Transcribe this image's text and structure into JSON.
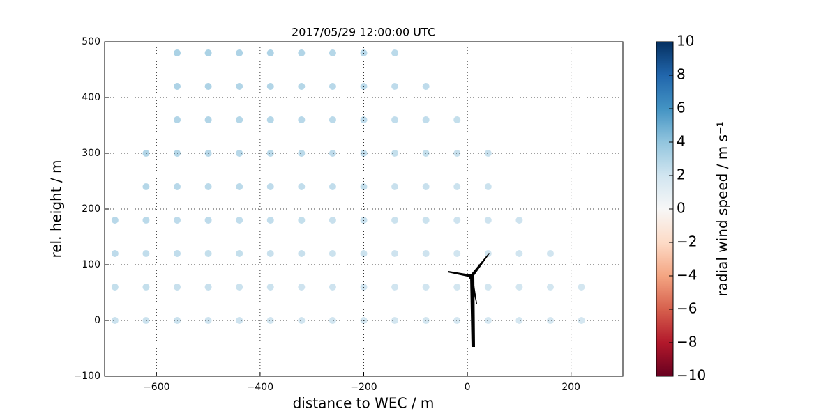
{
  "chart_data": {
    "type": "scatter",
    "title": "2017/05/29 12:00:00 UTC",
    "x_label": "distance to WEC / m",
    "y_label": "rel. height / m",
    "colorbar_label": "radial wind speed / m s⁻¹",
    "xlim": [
      -700,
      300
    ],
    "ylim": [
      -100,
      500
    ],
    "xticks": [
      {
        "value": -600,
        "label": "−600"
      },
      {
        "value": -400,
        "label": "−400"
      },
      {
        "value": -200,
        "label": "−200"
      },
      0,
      200
    ],
    "yticks": [
      {
        "value": -100,
        "label": "−100"
      },
      0,
      100,
      200,
      300,
      400,
      500
    ],
    "grid": true,
    "clim": [
      -10,
      10
    ],
    "cticks": [
      {
        "value": -10,
        "label": "−10"
      },
      {
        "value": -8,
        "label": "−8"
      },
      {
        "value": -6,
        "label": "−6"
      },
      {
        "value": -4,
        "label": "−4"
      },
      {
        "value": -2,
        "label": "−2"
      },
      0,
      2,
      4,
      6,
      8,
      10
    ],
    "colormap": [
      "#67001f",
      "#b2182b",
      "#d6604d",
      "#f4a582",
      "#fddbc7",
      "#f7f7f7",
      "#d1e5f0",
      "#92c5de",
      "#4393c3",
      "#2166ac",
      "#053061"
    ],
    "x": [
      -680,
      -680,
      -680,
      -680,
      -620,
      -620,
      -620,
      -620,
      -620,
      -620,
      -560,
      -560,
      -560,
      -560,
      -560,
      -560,
      -560,
      -560,
      -560,
      -500,
      -500,
      -500,
      -500,
      -500,
      -500,
      -500,
      -500,
      -500,
      -440,
      -440,
      -440,
      -440,
      -440,
      -440,
      -440,
      -440,
      -440,
      -380,
      -380,
      -380,
      -380,
      -380,
      -380,
      -380,
      -380,
      -380,
      -320,
      -320,
      -320,
      -320,
      -320,
      -320,
      -320,
      -320,
      -320,
      -260,
      -260,
      -260,
      -260,
      -260,
      -260,
      -260,
      -260,
      -260,
      -200,
      -200,
      -200,
      -200,
      -200,
      -200,
      -200,
      -200,
      -200,
      -140,
      -140,
      -140,
      -140,
      -140,
      -140,
      -140,
      -140,
      -140,
      -80,
      -80,
      -80,
      -80,
      -80,
      -80,
      -80,
      -80,
      -20,
      -20,
      -20,
      -20,
      -20,
      -20,
      -20,
      40,
      40,
      40,
      40,
      40,
      40,
      100,
      100,
      100,
      100,
      160,
      160,
      160,
      220,
      220
    ],
    "y": [
      0,
      60,
      120,
      180,
      0,
      60,
      120,
      180,
      240,
      300,
      0,
      60,
      120,
      180,
      240,
      300,
      360,
      420,
      480,
      0,
      60,
      120,
      180,
      240,
      300,
      360,
      420,
      480,
      0,
      60,
      120,
      180,
      240,
      300,
      360,
      420,
      480,
      0,
      60,
      120,
      180,
      240,
      300,
      360,
      420,
      480,
      0,
      60,
      120,
      180,
      240,
      300,
      360,
      420,
      480,
      0,
      60,
      120,
      180,
      240,
      300,
      360,
      420,
      480,
      0,
      60,
      120,
      180,
      240,
      300,
      360,
      420,
      480,
      0,
      60,
      120,
      180,
      240,
      300,
      360,
      420,
      480,
      0,
      60,
      120,
      180,
      240,
      300,
      360,
      420,
      0,
      60,
      120,
      180,
      240,
      300,
      360,
      0,
      60,
      120,
      180,
      240,
      300,
      0,
      60,
      120,
      180,
      0,
      60,
      120,
      0,
      60
    ],
    "values": [
      2.2,
      2.4,
      2.6,
      2.8,
      2.2,
      2.4,
      2.5,
      2.7,
      2.9,
      3.0,
      2.2,
      2.3,
      2.5,
      2.6,
      2.8,
      2.9,
      3.0,
      3.1,
      3.2,
      2.1,
      2.3,
      2.4,
      2.6,
      2.7,
      2.8,
      3.0,
      3.1,
      3.2,
      2.1,
      2.2,
      2.4,
      2.5,
      2.7,
      2.8,
      2.9,
      3.0,
      3.1,
      2.0,
      2.2,
      2.3,
      2.5,
      2.6,
      2.7,
      2.9,
      3.0,
      3.1,
      2.0,
      2.1,
      2.3,
      2.4,
      2.5,
      2.7,
      2.8,
      2.9,
      3.0,
      2.0,
      2.1,
      2.2,
      2.3,
      2.5,
      2.6,
      2.7,
      2.8,
      2.9,
      1.9,
      2.0,
      2.2,
      2.3,
      2.4,
      2.5,
      2.6,
      2.7,
      2.8,
      1.9,
      2.0,
      2.1,
      2.2,
      2.3,
      2.4,
      2.5,
      2.6,
      2.7,
      1.9,
      2.0,
      2.1,
      2.2,
      2.3,
      2.4,
      2.5,
      2.6,
      1.8,
      1.9,
      2.0,
      2.1,
      2.2,
      2.3,
      2.4,
      1.8,
      1.9,
      2.0,
      2.1,
      2.2,
      2.3,
      1.8,
      1.9,
      2.0,
      2.1,
      1.8,
      1.9,
      2.0,
      1.8,
      1.9
    ]
  }
}
